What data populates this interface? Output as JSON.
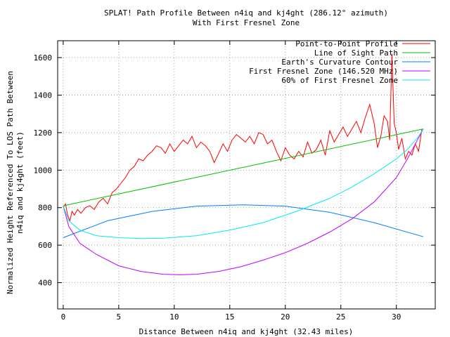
{
  "chart_data": {
    "type": "line",
    "title": "SPLAT! Path Profile Between n4iq and kj4ght (286.12° azimuth)",
    "subtitle": "With First Fresnel Zone",
    "xlabel": "Distance Between n4iq and kj4ght (32.43 miles)",
    "ylabel_line1": "Normalized Height Referenced To LOS Path Between",
    "ylabel_line2": "n4iq and kj4ght (feet)",
    "xlim": [
      -0.5,
      33.5
    ],
    "ylim": [
      260,
      1690
    ],
    "x_ticks": [
      0,
      5,
      10,
      15,
      20,
      25,
      30
    ],
    "y_ticks": [
      400,
      600,
      800,
      1000,
      1200,
      1400,
      1600
    ],
    "grid": true,
    "legend_position": "top-right",
    "colors": {
      "profile": "#ff0000",
      "los": "#00c000",
      "curvature": "#0080ff",
      "fresnel": "#c000ff",
      "fresnel60": "#00eeee",
      "grid": "#a0a0a0"
    },
    "series": [
      {
        "name": "Point-to-Point Profile",
        "key": "profile",
        "x": [
          0,
          0.2,
          0.4,
          0.6,
          0.8,
          1.0,
          1.3,
          1.6,
          2.0,
          2.4,
          2.8,
          3.2,
          3.6,
          4.0,
          4.4,
          4.8,
          5.2,
          5.6,
          6.0,
          6.4,
          6.8,
          7.2,
          7.6,
          8.0,
          8.4,
          8.8,
          9.2,
          9.6,
          10.0,
          10.4,
          10.8,
          11.2,
          11.6,
          12.0,
          12.4,
          12.8,
          13.2,
          13.6,
          14.0,
          14.4,
          14.8,
          15.2,
          15.6,
          16.0,
          16.4,
          16.8,
          17.2,
          17.6,
          18.0,
          18.4,
          18.8,
          19.2,
          19.6,
          20.0,
          20.4,
          20.8,
          21.2,
          21.6,
          22.0,
          22.4,
          22.8,
          23.2,
          23.6,
          24.0,
          24.4,
          24.8,
          25.2,
          25.6,
          26.0,
          26.4,
          26.8,
          27.2,
          27.6,
          28.0,
          28.3,
          28.6,
          28.9,
          29.2,
          29.4,
          29.6,
          29.8,
          30.0,
          30.2,
          30.5,
          30.8,
          31.1,
          31.4,
          31.7,
          32.0,
          32.3
        ],
        "y": [
          800,
          820,
          760,
          730,
          780,
          760,
          790,
          770,
          800,
          810,
          790,
          830,
          850,
          820,
          880,
          900,
          930,
          960,
          1000,
          1020,
          1060,
          1050,
          1080,
          1100,
          1130,
          1120,
          1090,
          1140,
          1100,
          1130,
          1160,
          1140,
          1180,
          1120,
          1150,
          1130,
          1100,
          1040,
          1090,
          1140,
          1100,
          1160,
          1190,
          1170,
          1150,
          1180,
          1140,
          1200,
          1190,
          1140,
          1160,
          1100,
          1050,
          1120,
          1080,
          1060,
          1100,
          1070,
          1150,
          1090,
          1110,
          1160,
          1080,
          1210,
          1150,
          1190,
          1230,
          1180,
          1220,
          1260,
          1200,
          1280,
          1350,
          1250,
          1120,
          1180,
          1290,
          1260,
          1160,
          1620,
          1250,
          1200,
          1110,
          1170,
          1060,
          1100,
          1080,
          1140,
          1100,
          1220
        ]
      },
      {
        "name": "Line of Sight Path",
        "key": "los",
        "x": [
          0,
          32.43
        ],
        "y": [
          810,
          1220
        ]
      },
      {
        "name": "Earth's Curvature Contour",
        "key": "curvature",
        "x": [
          0,
          4,
          8,
          12,
          16.2,
          20,
          24,
          28,
          32.43
        ],
        "y": [
          640,
          730,
          780,
          808,
          815,
          808,
          775,
          720,
          645
        ]
      },
      {
        "name": "First Fresnel Zone (146.520 MHz)",
        "key": "fresnel",
        "x": [
          0,
          0.5,
          1.5,
          3,
          5,
          7,
          9,
          10.5,
          12,
          14,
          16,
          18,
          20,
          22,
          24,
          26,
          28,
          30,
          31,
          31.8,
          32.43
        ],
        "y": [
          810,
          700,
          610,
          550,
          490,
          460,
          445,
          442,
          445,
          460,
          485,
          520,
          560,
          610,
          670,
          740,
          830,
          960,
          1060,
          1150,
          1220
        ]
      },
      {
        "name": "60% of First Fresnel Zone",
        "key": "fresnel60",
        "x": [
          0,
          0.5,
          1.5,
          3,
          5,
          7,
          9,
          12,
          15,
          18,
          21,
          24,
          26,
          28,
          30,
          31,
          32,
          32.43
        ],
        "y": [
          810,
          730,
          680,
          650,
          640,
          635,
          637,
          650,
          680,
          720,
          780,
          850,
          910,
          980,
          1060,
          1110,
          1180,
          1220
        ]
      }
    ]
  }
}
